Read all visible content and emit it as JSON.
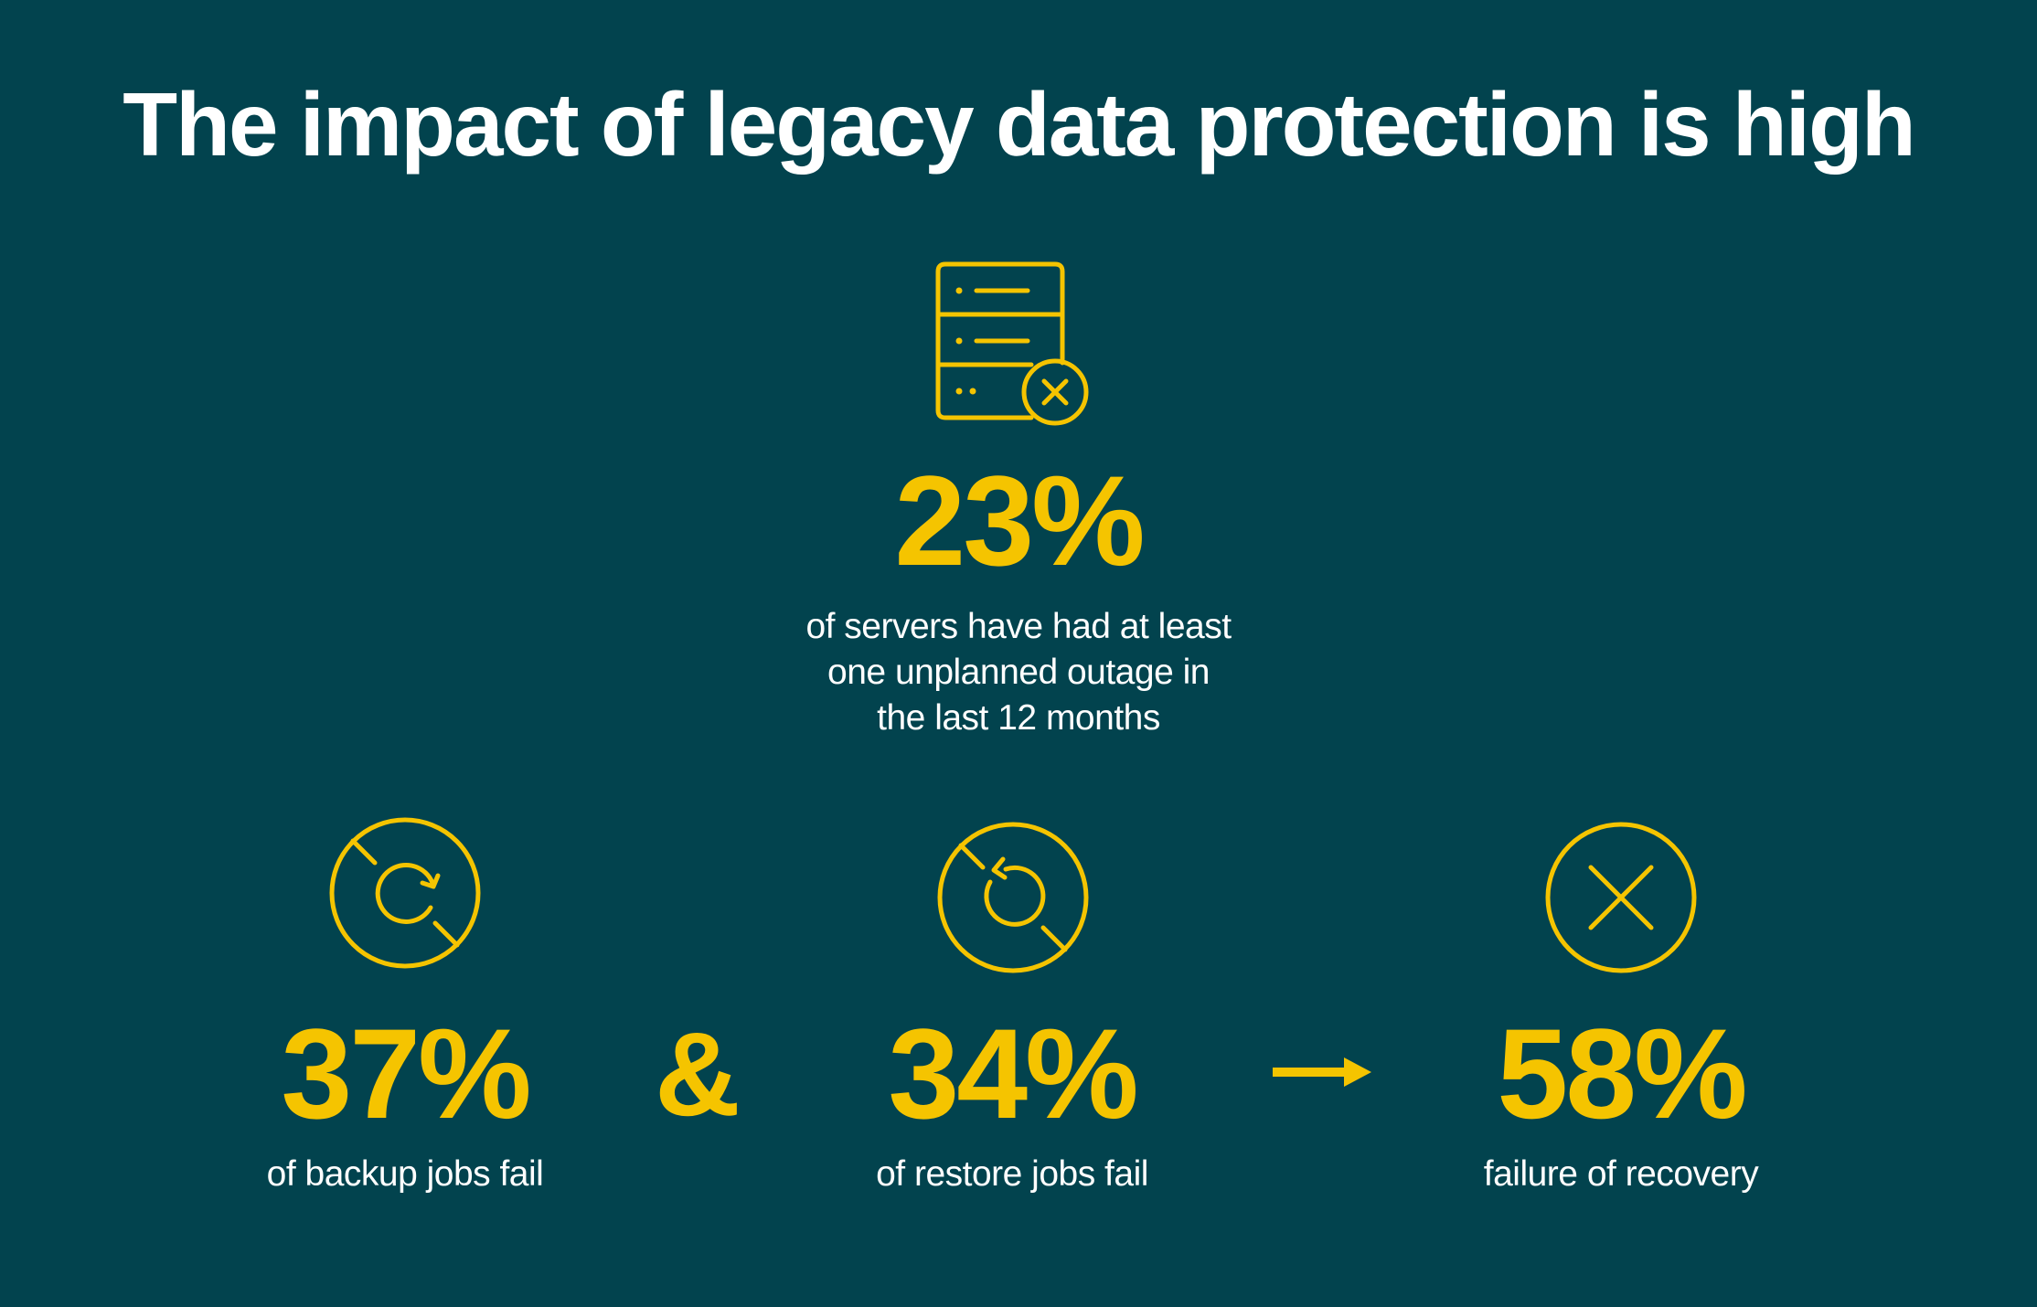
{
  "title": "The impact of legacy data protection is high",
  "colors": {
    "background": "#02434e",
    "accent": "#f5c400",
    "text": "#ffffff"
  },
  "top_stat": {
    "icon": "server-error-icon",
    "value": "23%",
    "description_lines": [
      "of servers have had at least",
      "one unplanned outage in",
      "the last 12 months"
    ]
  },
  "bottom_stats": [
    {
      "icon": "backup-sync-icon",
      "value": "37%",
      "description": "of backup jobs fail"
    },
    {
      "icon": "restore-sync-icon",
      "value": "34%",
      "description": "of restore jobs fail"
    },
    {
      "icon": "failure-x-circle-icon",
      "value": "58%",
      "description": "failure of recovery"
    }
  ],
  "connector_symbol": "&",
  "arrow_icon": "arrow-right-icon"
}
